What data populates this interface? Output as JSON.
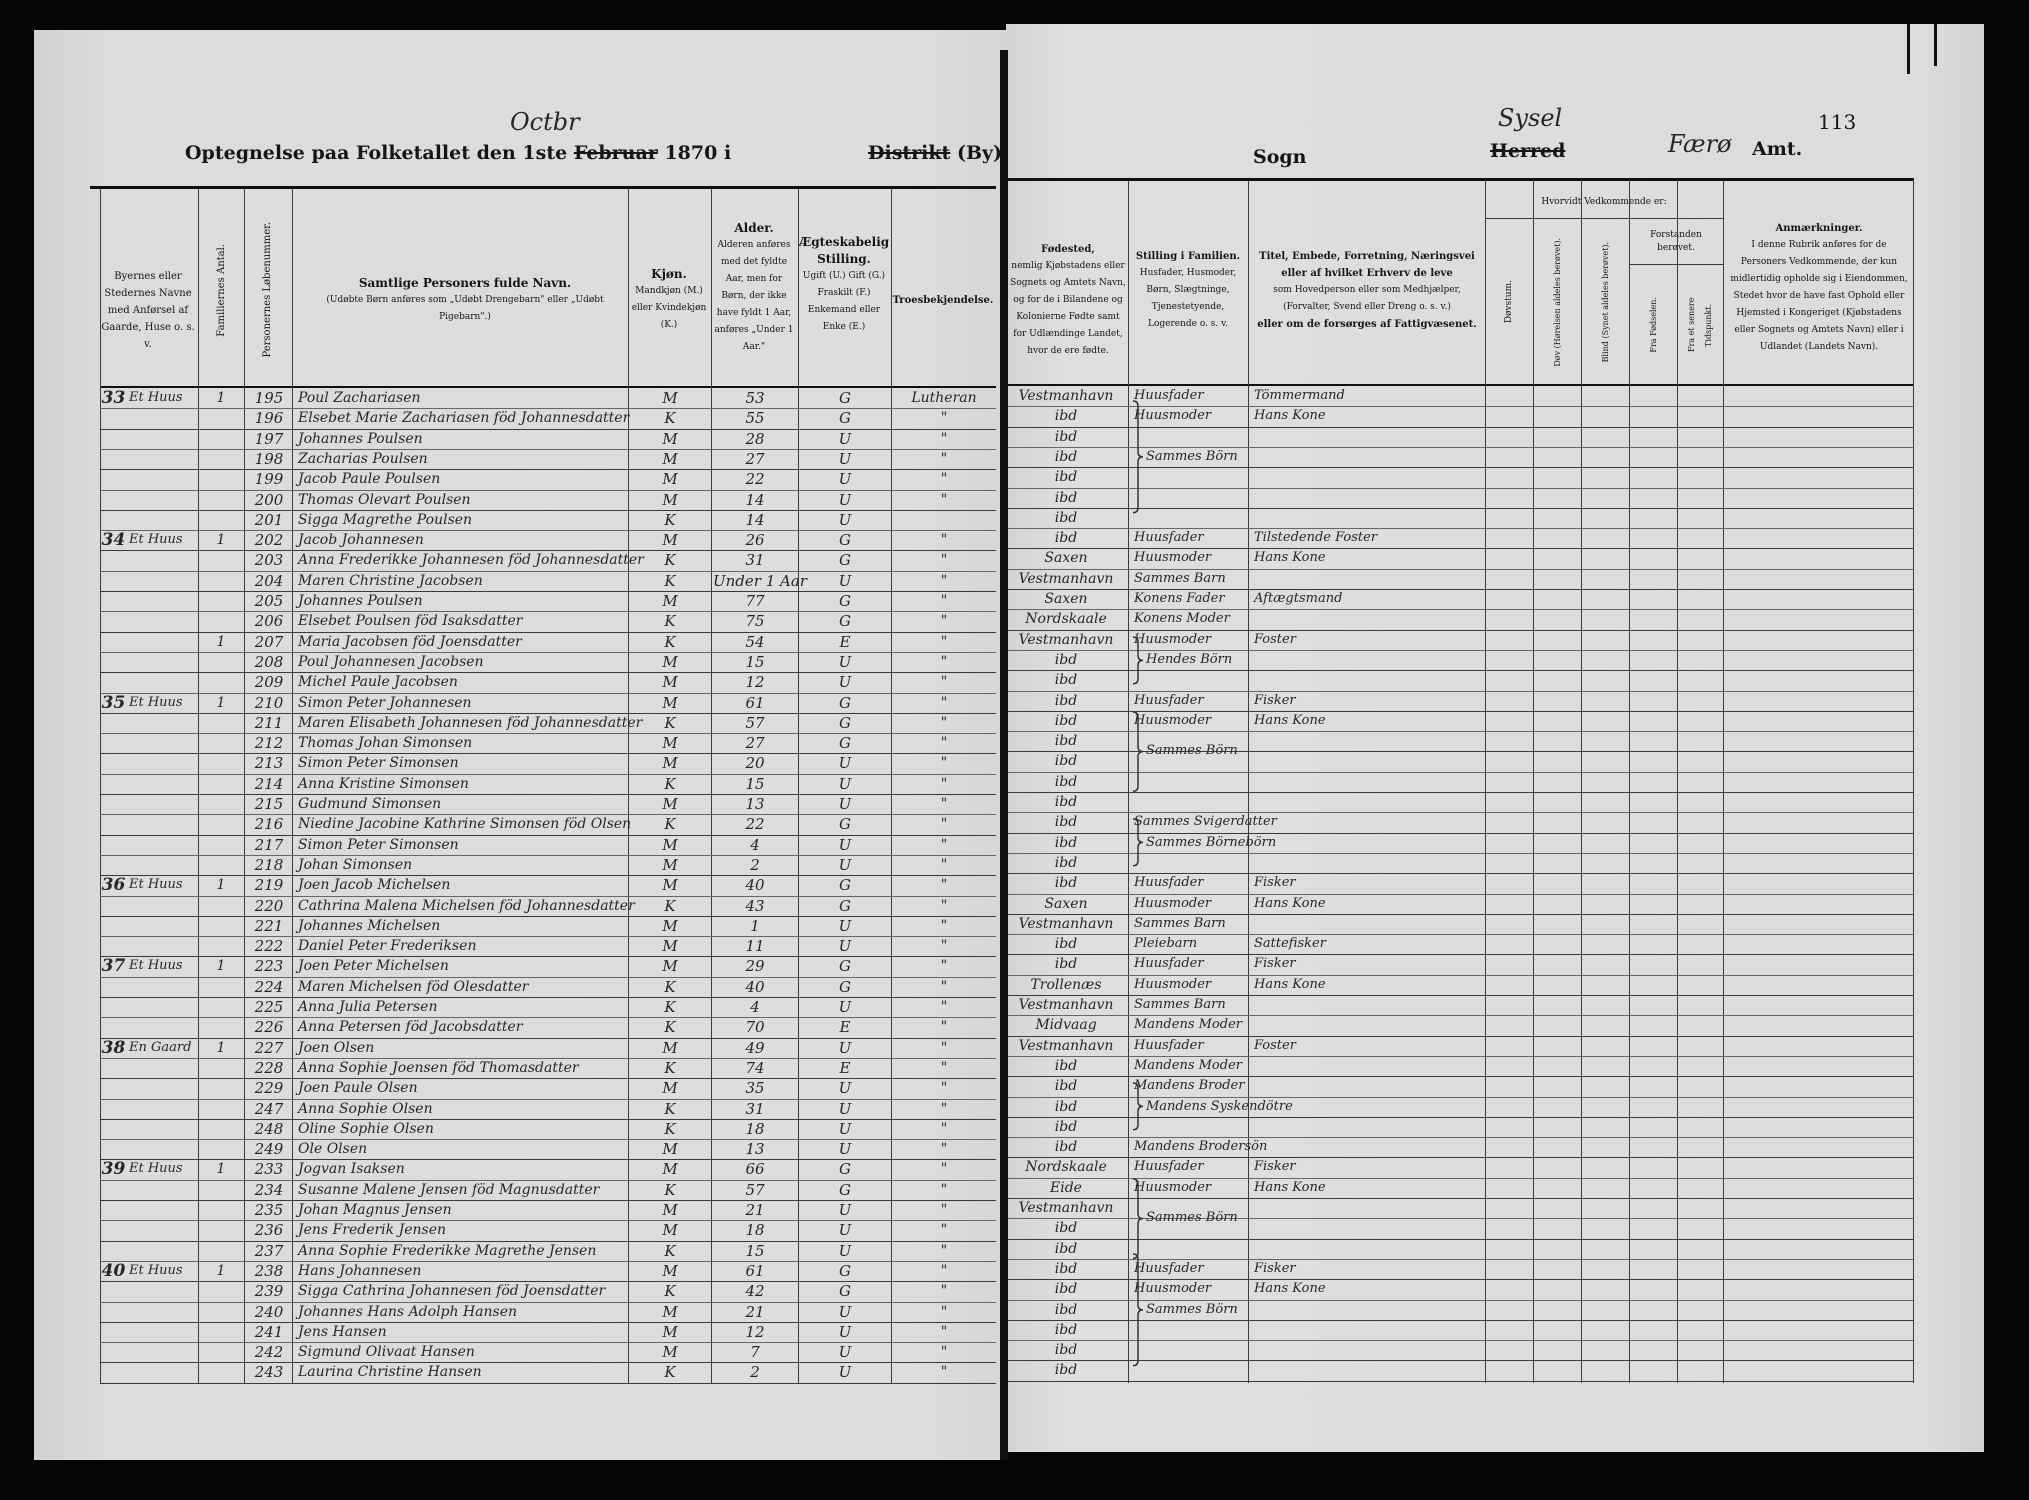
{
  "header": {
    "title_prefix": "Optegnelse paa Folketallet den 1ste",
    "struck_month": "Februar",
    "handwritten_month": "Octbr",
    "year_suffix": "1870 i",
    "district_struck": "Distrikt",
    "district_rest": "(By)",
    "sogn": "Sogn",
    "herred_struck": "Herred",
    "herred_handwritten": "Sysel",
    "amt_handwritten": "Færø",
    "amt": "Amt.",
    "page_number": "113"
  },
  "columns": {
    "place": "Byernes eller Stedernes Navne med Anførsel af Gaarde, Huse o. s. v.",
    "families": "Familiernes Antal.",
    "person_no": "Personernes Løbenummer.",
    "name_title": "Samtlige Personers fulde Navn.",
    "name_note": "(Udøbte Børn anføres som „Udøbt Drengebarn\" eller „Udøbt Pigebarn\".)",
    "sex_title": "Kjøn.",
    "sex_note": "Mandkjøn (M.) eller Kvindekjøn (K.)",
    "age_title": "Alder.",
    "age_note": "Alderen anføres med det fyldte Aar, men for Børn, der ikke have fyldt 1 Aar, anføres „Under 1 Aar.\"",
    "marital_title": "Ægteskabelig Stilling.",
    "marital_note": "Ugift (U.) Gift (G.) Fraskilt (F.) Enkemand eller Enke (E.)",
    "religion": "Troesbekjendelse.",
    "birthplace_title": "Fødested,",
    "birthplace_note": "nemlig Kjøbstadens eller Sognets og Amtets Navn, og for de i Bilandene og Kolonierne Fødte samt for Udlændinge Landet, hvor de ere fødte.",
    "family_position_title": "Stilling i Familien.",
    "family_position_note": "Husfader, Husmoder, Børn, Slægtninge, Tjenestetyende, Logerende o. s. v.",
    "occupation_title": "Titel, Embede, Forretning, Næringsvei eller af hvilket Erhverv de leve",
    "occupation_note": "som Hovedperson eller som Medhjælper, (Forvalter, Svend eller Dreng o. s. v.)",
    "occupation_tail": "eller om de forsørges af Fattigvæsenet.",
    "condition_group": "Hvorvidt Vedkommende er:",
    "deaf_mute": "Døvstum.",
    "deaf": "Døv (Hørelsen aldeles berøvet).",
    "blind": "Blind (Synet aldeles berøvet).",
    "insane_group": "Forstanden berøvet.",
    "insane_birth": "Fra Fødselen.",
    "insane_later": "Fra et senere Tidspunkt.",
    "remarks_title": "Anmærkninger.",
    "remarks_note": "I denne Rubrik anføres for de Personers Vedkommende, der kun midlertidig opholde sig i Eiendommen, Stedet hvor de have fast Ophold eller Hjemsted i Kongeriget (Kjøbstadens eller Sognets og Amtets Navn) eller i Udlandet (Landets Navn)."
  },
  "rows": [
    {
      "dwelling_no": "33",
      "dwelling": "Et Huus",
      "families": "1",
      "person_no": "195",
      "name": "Poul Zachariasen",
      "sex": "M",
      "age": "53",
      "marital": "G",
      "religion": "Lutheran",
      "birthplace": "Vestmanhavn",
      "family_position": "Huusfader",
      "occupation": "Tömmermand"
    },
    {
      "person_no": "196",
      "name": "Elsebet Marie Zachariasen föd Johannesdatter",
      "sex": "K",
      "age": "55",
      "marital": "G",
      "religion": "\"",
      "birthplace": "ibd",
      "family_position": "Huusmoder",
      "occupation": "Hans Kone"
    },
    {
      "person_no": "197",
      "name": "Johannes Poulsen",
      "sex": "M",
      "age": "28",
      "marital": "U",
      "religion": "\"",
      "birthplace": "ibd"
    },
    {
      "person_no": "198",
      "name": "Zacharias Poulsen",
      "sex": "M",
      "age": "27",
      "marital": "U",
      "religion": "\"",
      "birthplace": "ibd"
    },
    {
      "person_no": "199",
      "name": "Jacob Paule Poulsen",
      "sex": "M",
      "age": "22",
      "marital": "U",
      "religion": "\"",
      "birthplace": "ibd",
      "family_position": "Sammes Börn",
      "brace": 3
    },
    {
      "person_no": "200",
      "name": "Thomas Olevart Poulsen",
      "sex": "M",
      "age": "14",
      "marital": "U",
      "religion": "\"",
      "birthplace": "ibd"
    },
    {
      "person_no": "201",
      "name": "Sigga Magrethe Poulsen",
      "sex": "K",
      "age": "14",
      "marital": "U",
      "birthplace": "ibd"
    },
    {
      "dwelling_no": "34",
      "dwelling": "Et Huus",
      "families": "1",
      "person_no": "202",
      "name": "Jacob Johannesen",
      "sex": "M",
      "age": "26",
      "marital": "G",
      "religion": "\"",
      "birthplace": "ibd",
      "family_position": "Huusfader",
      "occupation": "Tilstedende Foster"
    },
    {
      "person_no": "203",
      "name": "Anna Frederikke Johannesen föd Johannesdatter",
      "sex": "K",
      "age": "31",
      "marital": "G",
      "religion": "\"",
      "birthplace": "Saxen",
      "family_position": "Huusmoder",
      "occupation": "Hans Kone"
    },
    {
      "person_no": "204",
      "name": "Maren Christine Jacobsen",
      "sex": "K",
      "age": "Under 1 Aar",
      "marital": "U",
      "religion": "\"",
      "birthplace": "Vestmanhavn",
      "family_position": "Sammes Barn"
    },
    {
      "person_no": "205",
      "name": "Johannes Poulsen",
      "sex": "M",
      "age": "77",
      "marital": "G",
      "religion": "\"",
      "birthplace": "Saxen",
      "family_position": "Konens Fader",
      "occupation": "Aftægtsmand"
    },
    {
      "person_no": "206",
      "name": "Elsebet Poulsen föd Isaksdatter",
      "sex": "K",
      "age": "75",
      "marital": "G",
      "religion": "\"",
      "birthplace": "Nordskaale",
      "family_position": "Konens Moder"
    },
    {
      "families": "1",
      "person_no": "207",
      "name": "Maria Jacobsen föd Joensdatter",
      "sex": "K",
      "age": "54",
      "marital": "E",
      "religion": "\"",
      "birthplace": "Vestmanhavn",
      "family_position": "Huusmoder",
      "occupation": "Foster"
    },
    {
      "person_no": "208",
      "name": "Poul Johannesen Jacobsen",
      "sex": "M",
      "age": "15",
      "marital": "U",
      "religion": "\"",
      "birthplace": "ibd",
      "family_position": "Hendes Börn",
      "brace": 1
    },
    {
      "person_no": "209",
      "name": "Michel Paule Jacobsen",
      "sex": "M",
      "age": "12",
      "marital": "U",
      "religion": "\"",
      "birthplace": "ibd"
    },
    {
      "dwelling_no": "35",
      "dwelling": "Et Huus",
      "families": "1",
      "person_no": "210",
      "name": "Simon Peter Johannesen",
      "sex": "M",
      "age": "61",
      "marital": "G",
      "religion": "\"",
      "birthplace": "ibd",
      "family_position": "Huusfader",
      "occupation": "Fisker"
    },
    {
      "person_no": "211",
      "name": "Maren Elisabeth Johannesen föd Johannesdatter",
      "sex": "K",
      "age": "57",
      "marital": "G",
      "religion": "\"",
      "birthplace": "ibd",
      "family_position": "Huusmoder",
      "occupation": "Hans Kone"
    },
    {
      "person_no": "212",
      "name": "Thomas Johan Simonsen",
      "sex": "M",
      "age": "27",
      "marital": "G",
      "religion": "\"",
      "birthplace": "ibd"
    },
    {
      "person_no": "213",
      "name": "Simon Peter Simonsen",
      "sex": "M",
      "age": "20",
      "marital": "U",
      "religion": "\"",
      "birthplace": "ibd",
      "family_position": "Sammes Börn",
      "brace": 2
    },
    {
      "person_no": "214",
      "name": "Anna Kristine Simonsen",
      "sex": "K",
      "age": "15",
      "marital": "U",
      "religion": "\"",
      "birthplace": "ibd"
    },
    {
      "person_no": "215",
      "name": "Gudmund Simonsen",
      "sex": "M",
      "age": "13",
      "marital": "U",
      "religion": "\"",
      "birthplace": "ibd"
    },
    {
      "person_no": "216",
      "name": "Niedine Jacobine Kathrine Simonsen föd Olsen",
      "sex": "K",
      "age": "22",
      "marital": "G",
      "religion": "\"",
      "birthplace": "ibd",
      "family_position": "Sammes Svigerdatter"
    },
    {
      "person_no": "217",
      "name": "Simon Peter Simonsen",
      "sex": "M",
      "age": "4",
      "marital": "U",
      "religion": "\"",
      "birthplace": "ibd",
      "family_position": "Sammes Börnebörn",
      "brace": 1
    },
    {
      "person_no": "218",
      "name": "Johan Simonsen",
      "sex": "M",
      "age": "2",
      "marital": "U",
      "religion": "\"",
      "birthplace": "ibd"
    },
    {
      "dwelling_no": "36",
      "dwelling": "Et Huus",
      "families": "1",
      "person_no": "219",
      "name": "Joen Jacob Michelsen",
      "sex": "M",
      "age": "40",
      "marital": "G",
      "religion": "\"",
      "birthplace": "ibd",
      "family_position": "Huusfader",
      "occupation": "Fisker"
    },
    {
      "person_no": "220",
      "name": "Cathrina Malena Michelsen föd Johannesdatter",
      "sex": "K",
      "age": "43",
      "marital": "G",
      "religion": "\"",
      "birthplace": "Saxen",
      "family_position": "Huusmoder",
      "occupation": "Hans Kone"
    },
    {
      "person_no": "221",
      "name": "Johannes Michelsen",
      "sex": "M",
      "age": "1",
      "marital": "U",
      "religion": "\"",
      "birthplace": "Vestmanhavn",
      "family_position": "Sammes Barn"
    },
    {
      "person_no": "222",
      "name": "Daniel Peter Frederiksen",
      "sex": "M",
      "age": "11",
      "marital": "U",
      "religion": "\"",
      "birthplace": "ibd",
      "family_position": "Pleiebarn",
      "occupation": "Sattefisker"
    },
    {
      "dwelling_no": "37",
      "dwelling": "Et Huus",
      "families": "1",
      "person_no": "223",
      "name": "Joen Peter Michelsen",
      "sex": "M",
      "age": "29",
      "marital": "G",
      "religion": "\"",
      "birthplace": "ibd",
      "family_position": "Huusfader",
      "occupation": "Fisker"
    },
    {
      "person_no": "224",
      "name": "Maren Michelsen föd Olesdatter",
      "sex": "K",
      "age": "40",
      "marital": "G",
      "religion": "\"",
      "birthplace": "Trollenæs",
      "family_position": "Huusmoder",
      "occupation": "Hans Kone"
    },
    {
      "person_no": "225",
      "name": "Anna Julia Petersen",
      "sex": "K",
      "age": "4",
      "marital": "U",
      "religion": "\"",
      "birthplace": "Vestmanhavn",
      "family_position": "Sammes Barn"
    },
    {
      "person_no": "226",
      "name": "Anna Petersen föd Jacobsdatter",
      "sex": "K",
      "age": "70",
      "marital": "E",
      "religion": "\"",
      "birthplace": "Midvaag",
      "family_position": "Mandens Moder"
    },
    {
      "dwelling_no": "38",
      "dwelling": "En Gaard",
      "families": "1",
      "person_no": "227",
      "name": "Joen Olsen",
      "sex": "M",
      "age": "49",
      "marital": "U",
      "religion": "\"",
      "birthplace": "Vestmanhavn",
      "family_position": "Huusfader",
      "occupation": "Foster"
    },
    {
      "person_no": "228",
      "name": "Anna Sophie Joensen föd Thomasdatter",
      "sex": "K",
      "age": "74",
      "marital": "E",
      "religion": "\"",
      "birthplace": "ibd",
      "family_position": "Mandens Moder"
    },
    {
      "person_no": "229",
      "name": "Joen Paule Olsen",
      "sex": "M",
      "age": "35",
      "marital": "U",
      "religion": "\"",
      "birthplace": "ibd",
      "family_position": "Mandens Broder"
    },
    {
      "person_no": "247",
      "name": "Anna Sophie Olsen",
      "sex": "K",
      "age": "31",
      "marital": "U",
      "religion": "\"",
      "birthplace": "ibd",
      "family_position": "Mandens Syskendötre",
      "brace": 1
    },
    {
      "person_no": "248",
      "name": "Oline Sophie Olsen",
      "sex": "K",
      "age": "18",
      "marital": "U",
      "religion": "\"",
      "birthplace": "ibd"
    },
    {
      "person_no": "249",
      "name": "Ole Olsen",
      "sex": "M",
      "age": "13",
      "marital": "U",
      "religion": "\"",
      "birthplace": "ibd",
      "family_position": "Mandens Brodersön"
    },
    {
      "dwelling_no": "39",
      "dwelling": "Et Huus",
      "families": "1",
      "person_no": "233",
      "name": "Jogvan Isaksen",
      "sex": "M",
      "age": "66",
      "marital": "G",
      "religion": "\"",
      "birthplace": "Nordskaale",
      "family_position": "Huusfader",
      "occupation": "Fisker"
    },
    {
      "person_no": "234",
      "name": "Susanne Malene Jensen föd Magnusdatter",
      "sex": "K",
      "age": "57",
      "marital": "G",
      "religion": "\"",
      "birthplace": "Eide",
      "family_position": "Huusmoder",
      "occupation": "Hans Kone"
    },
    {
      "person_no": "235",
      "name": "Johan Magnus Jensen",
      "sex": "M",
      "age": "21",
      "marital": "U",
      "religion": "\"",
      "birthplace": "Vestmanhavn"
    },
    {
      "person_no": "236",
      "name": "Jens Frederik Jensen",
      "sex": "M",
      "age": "18",
      "marital": "U",
      "religion": "\"",
      "birthplace": "ibd",
      "family_position": "Sammes Börn",
      "brace": 2
    },
    {
      "person_no": "237",
      "name": "Anna Sophie Frederikke Magrethe Jensen",
      "sex": "K",
      "age": "15",
      "marital": "U",
      "religion": "\"",
      "birthplace": "ibd"
    },
    {
      "dwelling_no": "40",
      "dwelling": "Et Huus",
      "families": "1",
      "person_no": "238",
      "name": "Hans Johannesen",
      "sex": "M",
      "age": "61",
      "marital": "G",
      "religion": "\"",
      "birthplace": "ibd",
      "family_position": "Huusfader",
      "occupation": "Fisker"
    },
    {
      "person_no": "239",
      "name": "Sigga Cathrina Johannesen föd Joensdatter",
      "sex": "K",
      "age": "42",
      "marital": "G",
      "religion": "\"",
      "birthplace": "ibd",
      "family_position": "Huusmoder",
      "occupation": "Hans Kone"
    },
    {
      "person_no": "240",
      "name": "Johannes Hans Adolph Hansen",
      "sex": "M",
      "age": "21",
      "marital": "U",
      "religion": "\"",
      "birthplace": "ibd"
    },
    {
      "person_no": "241",
      "name": "Jens Hansen",
      "sex": "M",
      "age": "12",
      "marital": "U",
      "religion": "\"",
      "birthplace": "ibd",
      "family_position": "Sammes Börn",
      "brace": 3
    },
    {
      "person_no": "242",
      "name": "Sigmund Olivaat Hansen",
      "sex": "M",
      "age": "7",
      "marital": "U",
      "religion": "\"",
      "birthplace": "ibd"
    },
    {
      "person_no": "243",
      "name": "Laurina Christine Hansen",
      "sex": "K",
      "age": "2",
      "marital": "U",
      "religion": "\"",
      "birthplace": "ibd"
    }
  ]
}
